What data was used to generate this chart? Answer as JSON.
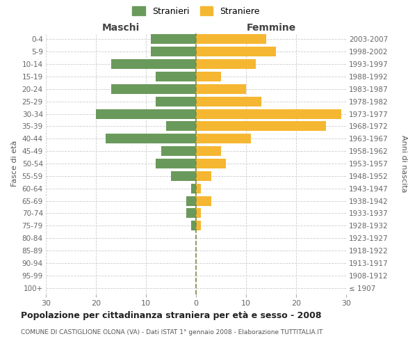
{
  "age_groups": [
    "100+",
    "95-99",
    "90-94",
    "85-89",
    "80-84",
    "75-79",
    "70-74",
    "65-69",
    "60-64",
    "55-59",
    "50-54",
    "45-49",
    "40-44",
    "35-39",
    "30-34",
    "25-29",
    "20-24",
    "15-19",
    "10-14",
    "5-9",
    "0-4"
  ],
  "birth_years": [
    "≤ 1907",
    "1908-1912",
    "1913-1917",
    "1918-1922",
    "1923-1927",
    "1928-1932",
    "1933-1937",
    "1938-1942",
    "1943-1947",
    "1948-1952",
    "1953-1957",
    "1958-1962",
    "1963-1967",
    "1968-1972",
    "1973-1977",
    "1978-1982",
    "1983-1987",
    "1988-1992",
    "1993-1997",
    "1998-2002",
    "2003-2007"
  ],
  "maschi": [
    0,
    0,
    0,
    0,
    0,
    1,
    2,
    2,
    1,
    5,
    8,
    7,
    18,
    6,
    20,
    8,
    17,
    8,
    17,
    9,
    9
  ],
  "femmine": [
    0,
    0,
    0,
    0,
    0,
    1,
    1,
    3,
    1,
    3,
    6,
    5,
    11,
    26,
    29,
    13,
    10,
    5,
    12,
    16,
    14
  ],
  "maschi_color": "#6a9a5b",
  "femmine_color": "#f5b731",
  "center_line_color": "#7a8a44",
  "grid_color": "#cccccc",
  "background_color": "#ffffff",
  "title": "Popolazione per cittadinanza straniera per età e sesso - 2008",
  "subtitle": "COMUNE DI CASTIGLIONE OLONA (VA) - Dati ISTAT 1° gennaio 2008 - Elaborazione TUTTITALIA.IT",
  "ylabel_left": "Fasce di età",
  "ylabel_right": "Anni di nascita",
  "header_maschi": "Maschi",
  "header_femmine": "Femmine",
  "legend_maschi": "Stranieri",
  "legend_femmine": "Straniere",
  "xlim": 30
}
